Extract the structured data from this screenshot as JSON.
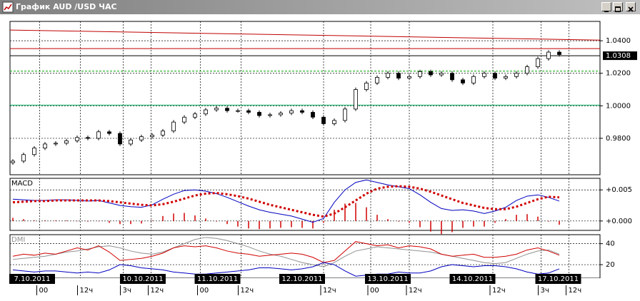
{
  "window": {
    "title": "График AUD /USD ЧАС"
  },
  "time_axis": {
    "dates": [
      {
        "value": 1.8,
        "label": "7.10.2011"
      },
      {
        "value": 12.13,
        "label": "10.10.2011"
      },
      {
        "value": 19.1,
        "label": "11.10.2011"
      },
      {
        "value": 27,
        "label": "12.10.2011"
      },
      {
        "value": 35,
        "label": "13.10.2011"
      },
      {
        "value": 42.9,
        "label": "14.10.2011"
      },
      {
        "value": 50.9,
        "label": "17.10.2011"
      }
    ],
    "hours": [
      {
        "value": 2.5,
        "label": "00"
      },
      {
        "value": 6.3,
        "label": "12ч"
      },
      {
        "value": 10.3,
        "label": "3ч"
      },
      {
        "value": 12.9,
        "label": "12ч"
      },
      {
        "value": 17.5,
        "label": "00"
      },
      {
        "value": 21.3,
        "label": "12ч"
      },
      {
        "value": 29,
        "label": "12ч"
      },
      {
        "value": 33.4,
        "label": "00"
      },
      {
        "value": 37,
        "label": "12ч"
      },
      {
        "value": 44.8,
        "label": "12ч"
      },
      {
        "value": 49.3,
        "label": "3ч"
      },
      {
        "value": 51.9,
        "label": "12ч"
      }
    ]
  },
  "chart_data": [
    {
      "type": "candlestick",
      "open": [
        0.965,
        0.966,
        0.97,
        0.974,
        0.9765,
        0.977,
        0.9785,
        0.9805,
        0.98,
        0.984,
        0.983,
        0.9765,
        0.979,
        0.981,
        0.982,
        0.9845,
        0.99,
        0.993,
        0.995,
        0.9975,
        0.9985,
        0.997,
        0.997,
        0.996,
        0.994,
        0.9945,
        0.9955,
        0.997,
        0.996,
        0.993,
        0.989,
        0.991,
        0.998,
        1.01,
        1.014,
        1.0175,
        1.02,
        1.017,
        1.018,
        1.021,
        1.019,
        1.02,
        1.016,
        1.014,
        1.018,
        1.02,
        1.017,
        1.018,
        1.02,
        1.024,
        1.029,
        1.033
      ],
      "high": [
        0.9672,
        0.9712,
        0.9752,
        0.9777,
        0.9782,
        0.9797,
        0.9817,
        0.9817,
        0.9852,
        0.9852,
        0.9842,
        0.9802,
        0.9822,
        0.9832,
        0.9857,
        0.9912,
        0.9942,
        0.9962,
        0.9987,
        0.9997,
        0.9997,
        0.9982,
        0.9982,
        0.9972,
        0.9957,
        0.9967,
        0.9982,
        0.9982,
        0.9972,
        0.9942,
        0.9922,
        0.9992,
        1.0112,
        1.0152,
        1.0187,
        1.0212,
        1.0212,
        1.0192,
        1.0222,
        1.0222,
        1.0212,
        1.0212,
        1.0172,
        1.0192,
        1.0212,
        1.0212,
        1.0192,
        1.0212,
        1.0252,
        1.0302,
        1.0342,
        1.0342
      ],
      "low": [
        0.9638,
        0.9648,
        0.9688,
        0.9728,
        0.9753,
        0.9758,
        0.9773,
        0.9788,
        0.9788,
        0.9818,
        0.9753,
        0.9753,
        0.9778,
        0.9798,
        0.9808,
        0.9833,
        0.9888,
        0.9918,
        0.9938,
        0.9963,
        0.9958,
        0.9958,
        0.9948,
        0.9928,
        0.9928,
        0.9933,
        0.9943,
        0.9948,
        0.9918,
        0.9878,
        0.9878,
        0.9898,
        0.9968,
        1.0088,
        1.0128,
        1.0163,
        1.0158,
        1.0158,
        1.0168,
        1.0178,
        1.0178,
        1.0148,
        1.0128,
        1.0128,
        1.0168,
        1.0158,
        1.0158,
        1.0168,
        1.0188,
        1.0228,
        1.0278,
        1.0303
      ],
      "close": [
        0.966,
        0.97,
        0.974,
        0.9765,
        0.977,
        0.9785,
        0.9805,
        0.98,
        0.984,
        0.983,
        0.9765,
        0.979,
        0.981,
        0.982,
        0.9845,
        0.99,
        0.993,
        0.995,
        0.9975,
        0.9985,
        0.997,
        0.997,
        0.996,
        0.994,
        0.9945,
        0.9955,
        0.997,
        0.996,
        0.993,
        0.989,
        0.991,
        0.998,
        1.01,
        1.014,
        1.0175,
        1.02,
        1.017,
        1.018,
        1.021,
        1.019,
        1.02,
        1.016,
        1.014,
        1.018,
        1.02,
        1.017,
        1.018,
        1.02,
        1.024,
        1.029,
        1.033,
        1.0315
      ],
      "up_color": "#ffffff",
      "down_color": "#000000",
      "ylim": [
        0.9576,
        1.0519
      ],
      "yticks": [
        {
          "value": 0.98,
          "label": "0.9800"
        },
        {
          "value": 1.0,
          "label": "1.0000"
        },
        {
          "value": 1.02,
          "label": "1.0200"
        },
        {
          "value": 1.04,
          "label": "1.0400"
        }
      ],
      "grid": true,
      "last_price": 1.0308,
      "levels": [
        {
          "value": 1.0352,
          "color": "#c00000",
          "style": "solid"
        },
        {
          "value": 1.0213,
          "color": "#00a000",
          "style": "dashed"
        },
        {
          "value": 1.0004,
          "color": "#00b060",
          "style": "solid"
        }
      ],
      "trend": {
        "from": 1.0466,
        "to": 1.0404,
        "color": "#c00000"
      }
    },
    {
      "type": "macd",
      "title": "MACD",
      "series": [
        {
          "color": "#0000c0",
          "style": "solid",
          "values": [
            0.0035,
            0.0034,
            0.0033,
            0.0033,
            0.0034,
            0.0034,
            0.0033,
            0.0032,
            0.0033,
            0.0029,
            0.0025,
            0.0023,
            0.0022,
            0.0026,
            0.0035,
            0.0043,
            0.0049,
            0.005,
            0.0048,
            0.0044,
            0.0038,
            0.0031,
            0.0024,
            0.0018,
            0.0014,
            0.0011,
            0.0008,
            0.0003,
            -0.0002,
            0.0004,
            0.003,
            0.005,
            0.0062,
            0.0066,
            0.0062,
            0.0058,
            0.0055,
            0.0052,
            0.0042,
            0.003,
            0.002,
            0.0017,
            0.0018,
            0.0016,
            0.0012,
            0.0016,
            0.0022,
            0.0033,
            0.004,
            0.0042,
            0.0038,
            0.0032
          ]
        },
        {
          "color": "#d00000",
          "style": "dotted",
          "values": [
            0.003,
            0.0031,
            0.0032,
            0.0032,
            0.0033,
            0.0033,
            0.0033,
            0.0033,
            0.0033,
            0.0032,
            0.003,
            0.0028,
            0.0026,
            0.0025,
            0.0027,
            0.0031,
            0.0036,
            0.0041,
            0.0044,
            0.0045,
            0.0043,
            0.004,
            0.0036,
            0.0031,
            0.0026,
            0.0022,
            0.0018,
            0.0014,
            0.001,
            0.0007,
            0.0012,
            0.0022,
            0.0033,
            0.0044,
            0.0052,
            0.0055,
            0.0056,
            0.0055,
            0.0052,
            0.0047,
            0.0041,
            0.0035,
            0.0029,
            0.0025,
            0.0021,
            0.0019,
            0.0019,
            0.0023,
            0.0029,
            0.0035,
            0.0039,
            0.0038
          ]
        }
      ],
      "histogram": {
        "color": "#d00000",
        "values": [
          0.0005,
          0.0003,
          0.0001,
          0.0001,
          0.0001,
          0.0001,
          0,
          -0.0001,
          0,
          -0.0003,
          -0.0005,
          -0.0005,
          -0.0004,
          0.0001,
          0.0008,
          0.0012,
          0.0013,
          0.0009,
          0.0004,
          -0.0001,
          -0.0005,
          -0.0009,
          -0.0012,
          -0.0013,
          -0.0012,
          -0.0011,
          -0.001,
          -0.0011,
          -0.0012,
          -0.0003,
          0.0018,
          0.0028,
          0.0029,
          0.0022,
          0.001,
          0.0003,
          -0.0001,
          -0.0003,
          -0.001,
          -0.0017,
          -0.0021,
          -0.0018,
          -0.0011,
          -0.0009,
          -0.0009,
          -0.0003,
          0.0003,
          0.001,
          0.0011,
          0.0007,
          -0.0001,
          -0.0006
        ]
      },
      "ylim": [
        -0.00151,
        0.00686
      ],
      "yticks": [
        {
          "value": 0.005,
          "label": "+0.005"
        },
        {
          "value": 0,
          "label": "+0.000"
        }
      ],
      "grid": true
    },
    {
      "type": "line",
      "title": "DMI",
      "series": [
        {
          "color": "#909090",
          "style": "solid",
          "values": [
            25,
            26,
            27,
            28,
            30,
            32,
            33,
            35,
            37,
            38,
            36,
            33,
            31,
            30,
            32,
            36,
            40,
            44,
            46,
            45,
            43,
            40,
            37,
            33,
            30,
            28,
            25,
            22,
            20,
            18,
            22,
            28,
            33,
            35,
            37,
            36,
            35,
            34,
            33,
            32,
            30,
            28,
            26,
            24,
            22,
            21,
            22,
            26,
            30,
            33,
            34,
            30
          ]
        },
        {
          "color": "#d00000",
          "style": "solid",
          "values": [
            28,
            30,
            29,
            31,
            30,
            33,
            36,
            34,
            38,
            32,
            24,
            25,
            26,
            28,
            31,
            36,
            38,
            37,
            38,
            36,
            33,
            31,
            30,
            28,
            29,
            30,
            31,
            30,
            27,
            22,
            24,
            33,
            42,
            40,
            38,
            39,
            36,
            38,
            37,
            35,
            30,
            28,
            29,
            30,
            27,
            27,
            28,
            30,
            34,
            36,
            33,
            29
          ]
        },
        {
          "color": "#0000c0",
          "style": "solid",
          "values": [
            15,
            14,
            13,
            14,
            14,
            13,
            12,
            13,
            12,
            15,
            20,
            19,
            17,
            16,
            15,
            13,
            12,
            11,
            11,
            12,
            13,
            14,
            15,
            17,
            17,
            16,
            15,
            16,
            18,
            22,
            20,
            14,
            9,
            10,
            11,
            11,
            13,
            12,
            12,
            14,
            18,
            20,
            19,
            18,
            19,
            19,
            18,
            16,
            13,
            11,
            12,
            16
          ]
        }
      ],
      "ylim": [
        7.1,
        48.6
      ],
      "yticks": [
        40,
        20
      ],
      "grid": true
    }
  ]
}
